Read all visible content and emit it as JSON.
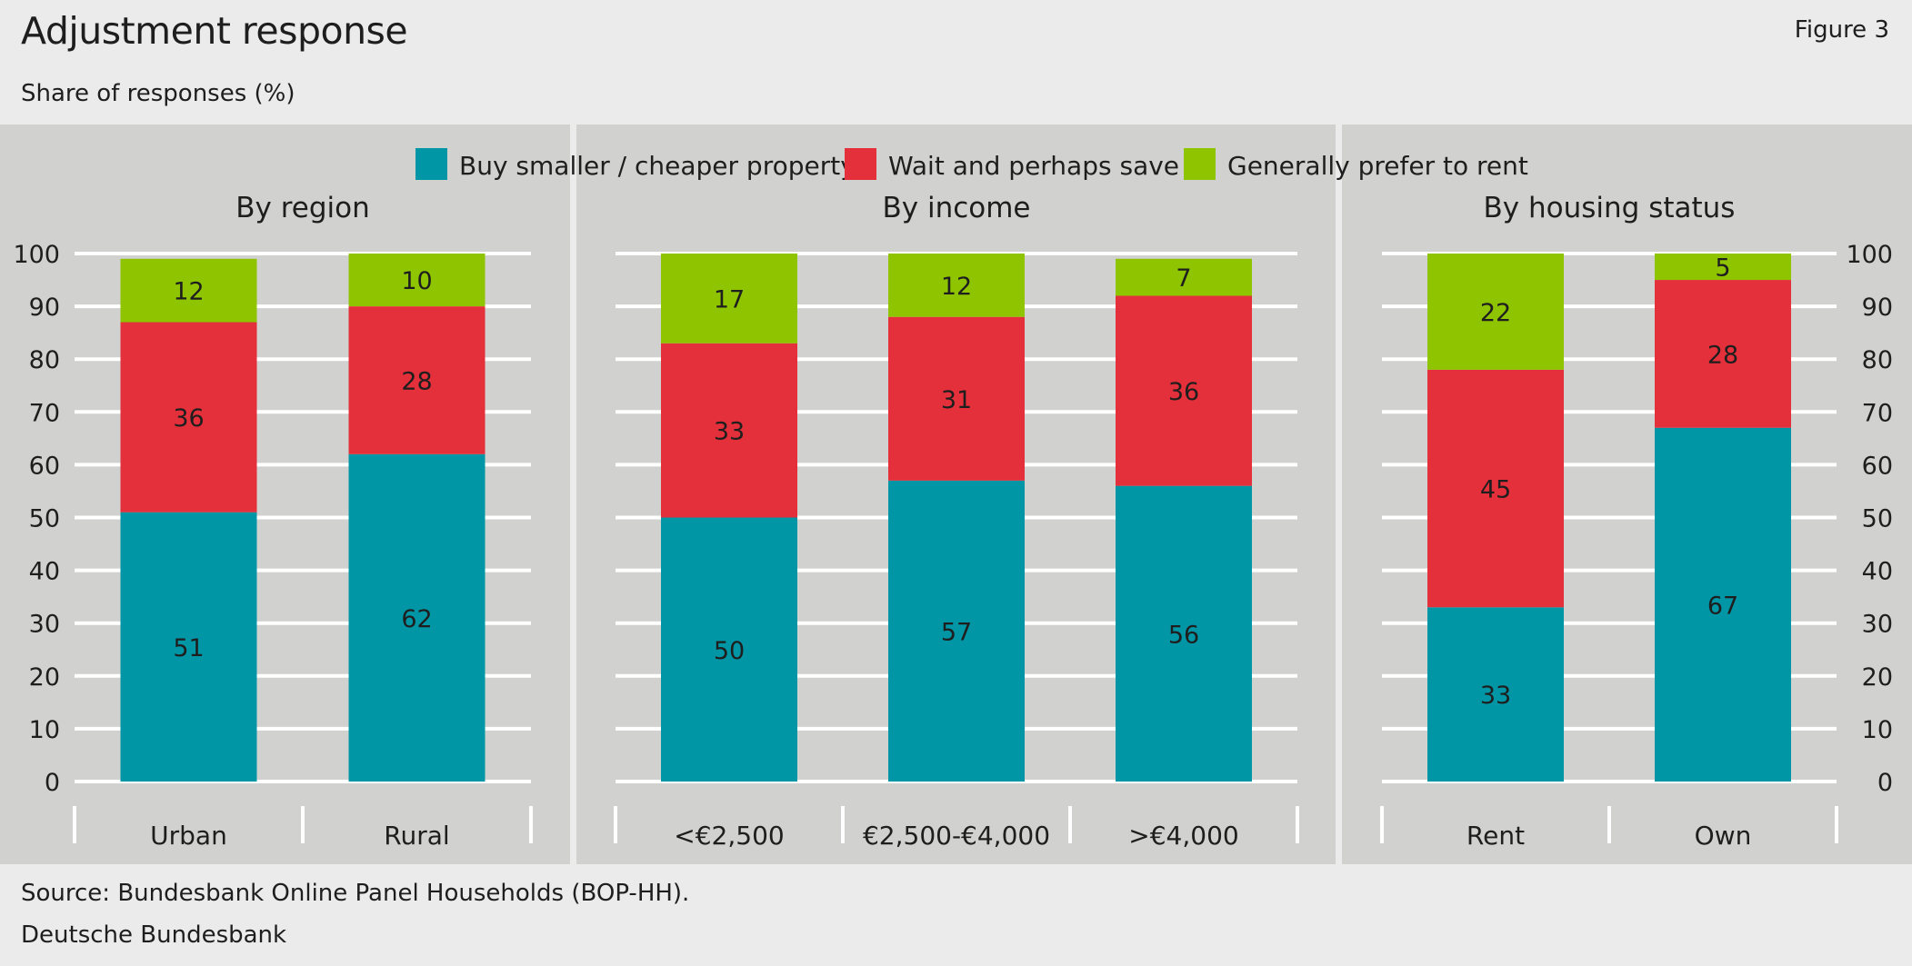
{
  "header": {
    "title": "Adjustment response",
    "figure_label": "Figure 3",
    "subtitle": "Share of responses (%)"
  },
  "footer": {
    "source": "Source: Bundesbank Online Panel Households (BOP-HH).",
    "publisher": "Deutsche Bundesbank"
  },
  "colors": {
    "series": [
      "#0096a6",
      "#e4303a",
      "#8ec400"
    ],
    "panel_bg": "#d1d1cf",
    "page_bg": "#ebebeb",
    "grid": "#ffffff"
  },
  "chart_data": {
    "type": "bar",
    "stacked": true,
    "ylim": [
      0,
      100
    ],
    "yticks": [
      0,
      10,
      20,
      30,
      40,
      50,
      60,
      70,
      80,
      90,
      100
    ],
    "grid": true,
    "legend_position": "top-center",
    "legend": [
      "Buy smaller / cheaper property",
      "Wait and perhaps save",
      "Generally prefer to rent"
    ],
    "panels": [
      {
        "title": "By region",
        "categories": [
          "Urban",
          "Rural"
        ],
        "series": [
          {
            "name": "Buy smaller / cheaper property",
            "values": [
              51,
              62
            ]
          },
          {
            "name": "Wait and perhaps save",
            "values": [
              36,
              28
            ]
          },
          {
            "name": "Generally prefer to rent",
            "values": [
              12,
              10
            ]
          }
        ]
      },
      {
        "title": "By income",
        "categories": [
          "<€2,500",
          "€2,500-€4,000",
          ">€4,000"
        ],
        "series": [
          {
            "name": "Buy smaller / cheaper property",
            "values": [
              50,
              57,
              56
            ]
          },
          {
            "name": "Wait and perhaps save",
            "values": [
              33,
              31,
              36
            ]
          },
          {
            "name": "Generally prefer to rent",
            "values": [
              17,
              12,
              7
            ]
          }
        ]
      },
      {
        "title": "By housing status",
        "categories": [
          "Rent",
          "Own"
        ],
        "series": [
          {
            "name": "Buy smaller / cheaper property",
            "values": [
              33,
              67
            ]
          },
          {
            "name": "Wait and perhaps save",
            "values": [
              45,
              28
            ]
          },
          {
            "name": "Generally prefer to rent",
            "values": [
              22,
              5
            ]
          }
        ]
      }
    ]
  }
}
